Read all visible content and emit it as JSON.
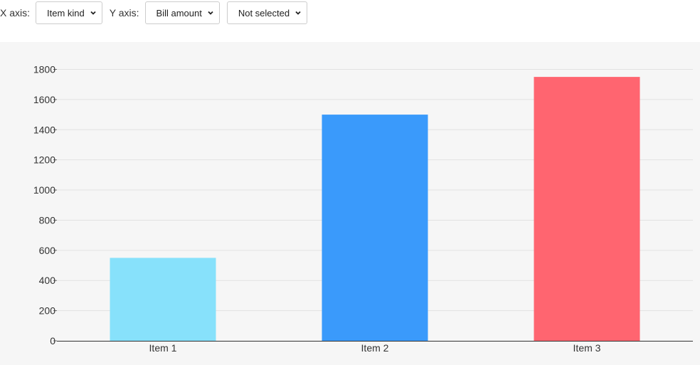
{
  "controls": {
    "x_axis_label": "X axis:",
    "x_axis_value": "Item kind",
    "y_axis_label": "Y axis:",
    "y_axis_value": "Bill amount",
    "third_value": "Not selected"
  },
  "chart_data": {
    "type": "bar",
    "categories": [
      "Item 1",
      "Item 2",
      "Item 3"
    ],
    "values": [
      550,
      1500,
      1750
    ],
    "colors": [
      "#87e1fb",
      "#3a9afb",
      "#ff6570"
    ],
    "ylim": [
      0,
      1800
    ],
    "yticks": [
      0,
      200,
      400,
      600,
      800,
      1000,
      1200,
      1400,
      1600,
      1800
    ],
    "grid": true,
    "title": "",
    "xlabel": "",
    "ylabel": ""
  }
}
